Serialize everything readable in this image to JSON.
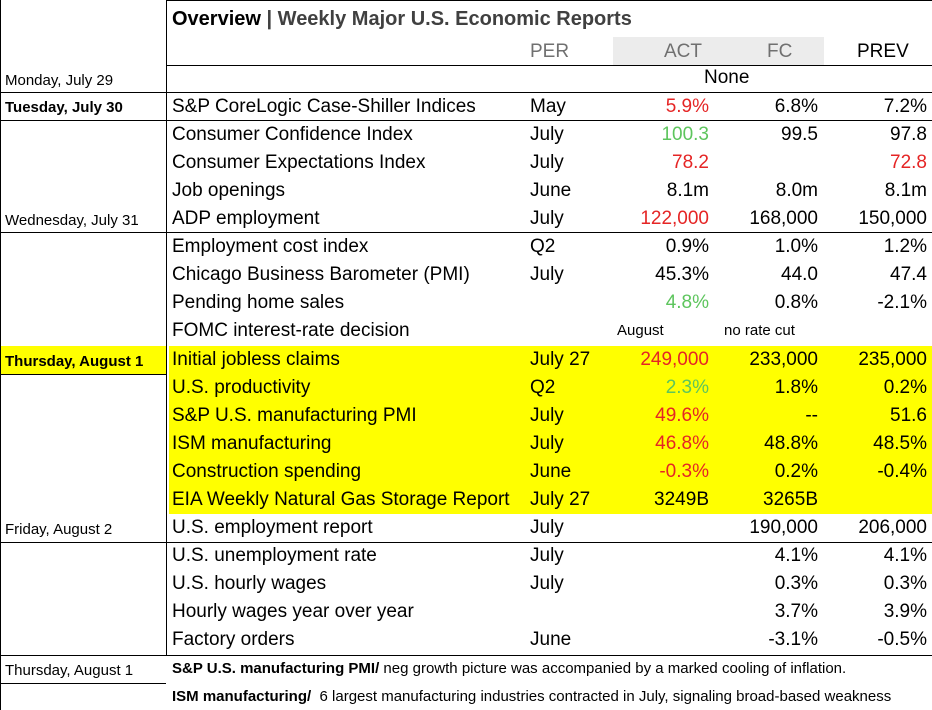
{
  "title": {
    "main": "Overview",
    "sep": " | ",
    "sub": "Weekly Major U.S. Economic Reports"
  },
  "columns": {
    "per": "PER",
    "act": "ACT",
    "fc": "FC",
    "prev": "PREV"
  },
  "dates": {
    "mon": "Monday, July 29",
    "tue": "Tuesday, July 30",
    "wed": "Wednesday, July 31",
    "thu": "Thursday, August 1",
    "fri": "Friday, August 2",
    "thu2": "Thursday, August 1"
  },
  "none_label": "None",
  "rows": [
    {
      "name": "S&P CoreLogic Case-Shiller Indices",
      "per": "May",
      "act": "5.9%",
      "fc": "6.8%",
      "prev": "7.2%"
    },
    {
      "name": "Consumer Confidence Index",
      "per": "July",
      "act": "100.3",
      "fc": "99.5",
      "prev": "97.8"
    },
    {
      "name": "Consumer Expectations Index",
      "per": "July",
      "act": "78.2",
      "fc": "",
      "prev": "72.8"
    },
    {
      "name": "Job openings",
      "per": "June",
      "act": "8.1m",
      "fc": "8.0m",
      "prev": "8.1m"
    },
    {
      "name": "ADP employment",
      "per": "July",
      "act": "122,000",
      "fc": "168,000",
      "prev": "150,000"
    },
    {
      "name": "Employment cost index",
      "per": "Q2",
      "act": "0.9%",
      "fc": "1.0%",
      "prev": "1.2%"
    },
    {
      "name": "Chicago Business Barometer (PMI)",
      "per": "July",
      "act": "45.3%",
      "fc": "44.0",
      "prev": "47.4"
    },
    {
      "name": "Pending home sales",
      "per": "",
      "act": "4.8%",
      "fc": "0.8%",
      "prev": "-2.1%"
    },
    {
      "name": "FOMC interest-rate decision",
      "per": "",
      "act": "August",
      "fc": "no rate cut",
      "prev": ""
    },
    {
      "name": "Initial jobless claims",
      "per": "July 27",
      "act": "249,000",
      "fc": "233,000",
      "prev": "235,000"
    },
    {
      "name": "U.S. productivity",
      "per": "Q2",
      "act": "2.3%",
      "fc": "1.8%",
      "prev": "0.2%"
    },
    {
      "name": "S&P U.S. manufacturing PMI",
      "per": "July",
      "act": "49.6%",
      "fc": "--",
      "prev": "51.6"
    },
    {
      "name": "ISM manufacturing",
      "per": "July",
      "act": "46.8%",
      "fc": "48.8%",
      "prev": "48.5%"
    },
    {
      "name": "Construction spending",
      "per": "June",
      "act": "-0.3%",
      "fc": "0.2%",
      "prev": "-0.4%"
    },
    {
      "name": "EIA Weekly Natural Gas Storage Report",
      "per": "July 27",
      "act": "3249B",
      "fc": "3265B",
      "prev": ""
    },
    {
      "name": "U.S. employment report",
      "per": "July",
      "act": "",
      "fc": "190,000",
      "prev": "206,000"
    },
    {
      "name": "U.S. unemployment rate",
      "per": "July",
      "act": "",
      "fc": "4.1%",
      "prev": "4.1%"
    },
    {
      "name": "U.S. hourly wages",
      "per": "July",
      "act": "",
      "fc": "0.3%",
      "prev": "0.3%"
    },
    {
      "name": "Hourly wages year over year",
      "per": "",
      "act": "",
      "fc": "3.7%",
      "prev": "3.9%"
    },
    {
      "name": "Factory orders",
      "per": "June",
      "act": "",
      "fc": "-3.1%",
      "prev": "-0.5%"
    }
  ],
  "colors": {
    "highlight": "#ffff00",
    "negative": "#e52525",
    "positive": "#5dc55d"
  },
  "notes": [
    {
      "label": "S&P U.S. manufacturing PMI/",
      "text": " neg growth picture was accompanied by a marked cooling of inflation."
    },
    {
      "label": "ISM manufacturing/",
      "text": "  6 largest manufacturing industries contracted in July, signaling broad-based weakness"
    }
  ]
}
